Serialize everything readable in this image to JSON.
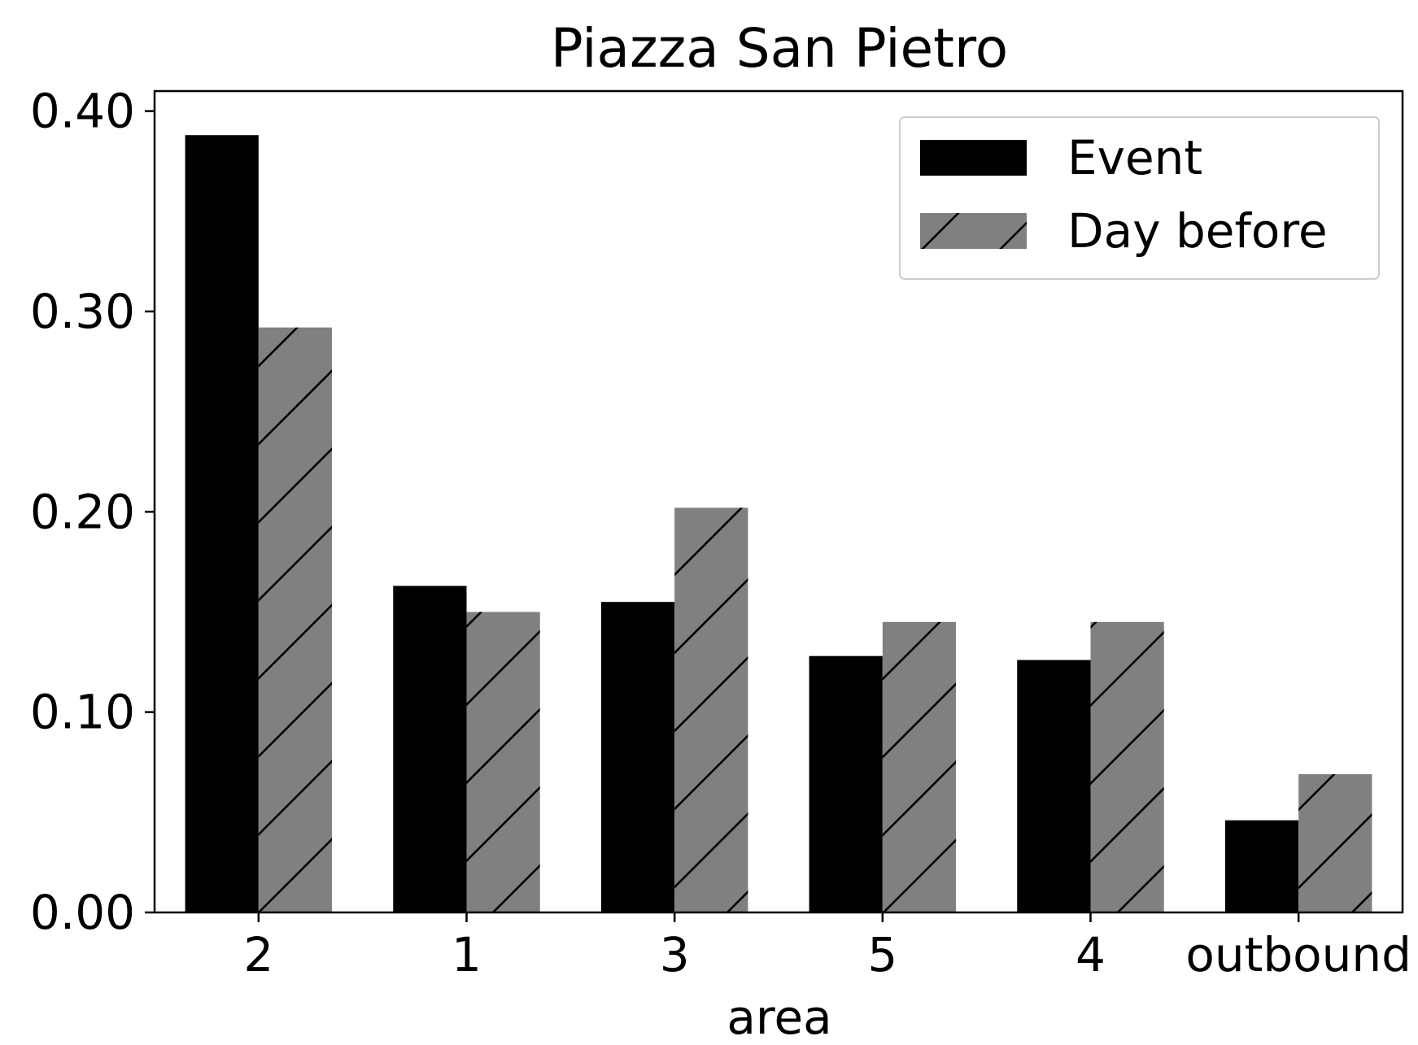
{
  "chart_data": {
    "type": "bar",
    "title": "Piazza San Pietro",
    "xlabel": "area",
    "ylabel": "",
    "categories": [
      "2",
      "1",
      "3",
      "5",
      "4",
      "outbound"
    ],
    "series": [
      {
        "name": "Event",
        "values": [
          0.388,
          0.163,
          0.155,
          0.128,
          0.126,
          0.046
        ],
        "color": "#000000",
        "hatch": "none"
      },
      {
        "name": "Day before",
        "values": [
          0.292,
          0.15,
          0.202,
          0.145,
          0.145,
          0.069
        ],
        "color": "#808080",
        "hatch": "diagonal"
      }
    ],
    "ylim": [
      0,
      0.41
    ],
    "yticks": [
      0.0,
      0.1,
      0.2,
      0.3,
      0.4
    ],
    "ytick_labels": [
      "0.00",
      "0.10",
      "0.20",
      "0.30",
      "0.40"
    ],
    "grid": false,
    "legend_position": "top-right"
  }
}
